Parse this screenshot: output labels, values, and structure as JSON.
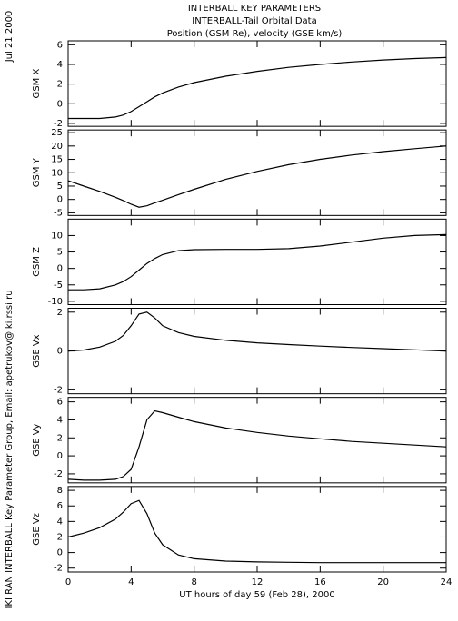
{
  "titles": [
    "INTERBALL KEY PARAMETERS",
    "INTERBALL-Tail Orbital Data",
    "Position (GSM Re), velocity (GSE km/s)"
  ],
  "date": "Jul 21 2000",
  "credit": "IKI RAN INTERBALL Key Parameter Group, Email: apetrukov@iki.rssi.ru",
  "chart_data": [
    {
      "type": "line",
      "ylabel": "GSM X",
      "color": "#000000",
      "x": [
        0,
        1,
        2,
        3,
        3.5,
        4,
        4.5,
        5,
        5.5,
        6,
        7,
        8,
        10,
        12,
        14,
        16,
        18,
        20,
        22,
        24
      ],
      "values": [
        -1.5,
        -1.5,
        -1.5,
        -1.35,
        -1.15,
        -0.8,
        -0.3,
        0.2,
        0.7,
        1.1,
        1.7,
        2.15,
        2.8,
        3.3,
        3.7,
        4.0,
        4.25,
        4.45,
        4.6,
        4.7
      ],
      "xlim": [
        0,
        24
      ],
      "xticks": [
        0,
        4,
        8,
        12,
        16,
        20,
        24
      ],
      "ylim": [
        -2.3,
        6.4
      ],
      "yticks": [
        -2,
        0,
        2,
        4,
        6
      ]
    },
    {
      "type": "line",
      "ylabel": "GSM Y",
      "color": "#000000",
      "x": [
        0,
        1,
        2,
        3,
        3.5,
        4,
        4.5,
        5,
        5.5,
        6,
        7,
        8,
        10,
        12,
        14,
        16,
        18,
        20,
        22,
        24
      ],
      "values": [
        7,
        5,
        3,
        0.8,
        -0.4,
        -1.8,
        -2.9,
        -2.4,
        -1.3,
        -0.3,
        1.8,
        3.8,
        7.5,
        10.5,
        13,
        15,
        16.6,
        17.9,
        19,
        20
      ],
      "xlim": [
        0,
        24
      ],
      "xticks": [
        0,
        4,
        8,
        12,
        16,
        20,
        24
      ],
      "ylim": [
        -6,
        26
      ],
      "yticks": [
        -5,
        0,
        5,
        10,
        15,
        20,
        25
      ]
    },
    {
      "type": "line",
      "ylabel": "GSM Z",
      "color": "#000000",
      "x": [
        0,
        1,
        2,
        3,
        3.5,
        4,
        4.5,
        5,
        5.5,
        6,
        7,
        8,
        10,
        12,
        14,
        16,
        18,
        20,
        22,
        24
      ],
      "values": [
        -6.5,
        -6.5,
        -6.2,
        -5,
        -4,
        -2.5,
        -0.5,
        1.5,
        3,
        4.2,
        5.4,
        5.7,
        5.8,
        5.8,
        6,
        6.8,
        8,
        9.2,
        10,
        10.3
      ],
      "xlim": [
        0,
        24
      ],
      "xticks": [
        0,
        4,
        8,
        12,
        16,
        20,
        24
      ],
      "ylim": [
        -11,
        15
      ],
      "yticks": [
        -10,
        -5,
        0,
        5,
        10
      ]
    },
    {
      "type": "line",
      "ylabel": "GSE Vx",
      "color": "#000000",
      "x": [
        0,
        1,
        2,
        3,
        3.5,
        4,
        4.5,
        5,
        5.5,
        6,
        7,
        8,
        10,
        12,
        14,
        16,
        18,
        20,
        22,
        24
      ],
      "values": [
        0,
        0.05,
        0.2,
        0.5,
        0.8,
        1.3,
        1.9,
        2,
        1.7,
        1.3,
        0.95,
        0.75,
        0.55,
        0.42,
        0.33,
        0.25,
        0.18,
        0.12,
        0.06,
        0
      ],
      "xlim": [
        0,
        24
      ],
      "xticks": [
        0,
        4,
        8,
        12,
        16,
        20,
        24
      ],
      "ylim": [
        -2.2,
        2.2
      ],
      "yticks": [
        -2,
        0,
        2
      ]
    },
    {
      "type": "line",
      "ylabel": "GSE Vy",
      "color": "#000000",
      "x": [
        0,
        1,
        2,
        3,
        3.5,
        4,
        4.5,
        5,
        5.5,
        6,
        7,
        8,
        10,
        12,
        14,
        16,
        18,
        20,
        22,
        24
      ],
      "values": [
        -2.6,
        -2.7,
        -2.7,
        -2.6,
        -2.3,
        -1.5,
        1,
        4,
        5,
        4.8,
        4.3,
        3.8,
        3.1,
        2.6,
        2.2,
        1.9,
        1.6,
        1.4,
        1.2,
        1.0
      ],
      "xlim": [
        0,
        24
      ],
      "xticks": [
        0,
        4,
        8,
        12,
        16,
        20,
        24
      ],
      "ylim": [
        -3,
        6.5
      ],
      "yticks": [
        -2,
        0,
        2,
        4,
        6
      ]
    },
    {
      "type": "line",
      "ylabel": "GSE Vz",
      "color": "#000000",
      "x": [
        0,
        1,
        2,
        3,
        3.5,
        4,
        4.5,
        5,
        5.5,
        6,
        7,
        8,
        10,
        12,
        14,
        16,
        18,
        20,
        22,
        24
      ],
      "values": [
        2,
        2.5,
        3.2,
        4.3,
        5.2,
        6.3,
        6.7,
        5,
        2.5,
        1,
        -0.3,
        -0.8,
        -1.1,
        -1.2,
        -1.25,
        -1.3,
        -1.3,
        -1.3,
        -1.3,
        -1.3
      ],
      "xlim": [
        0,
        24
      ],
      "xticks": [
        0,
        4,
        8,
        12,
        16,
        20,
        24
      ],
      "ylim": [
        -2.5,
        8.5
      ],
      "yticks": [
        -2,
        0,
        2,
        4,
        6,
        8
      ],
      "xlabel": "UT hours of day  59 (Feb 28), 2000"
    }
  ]
}
